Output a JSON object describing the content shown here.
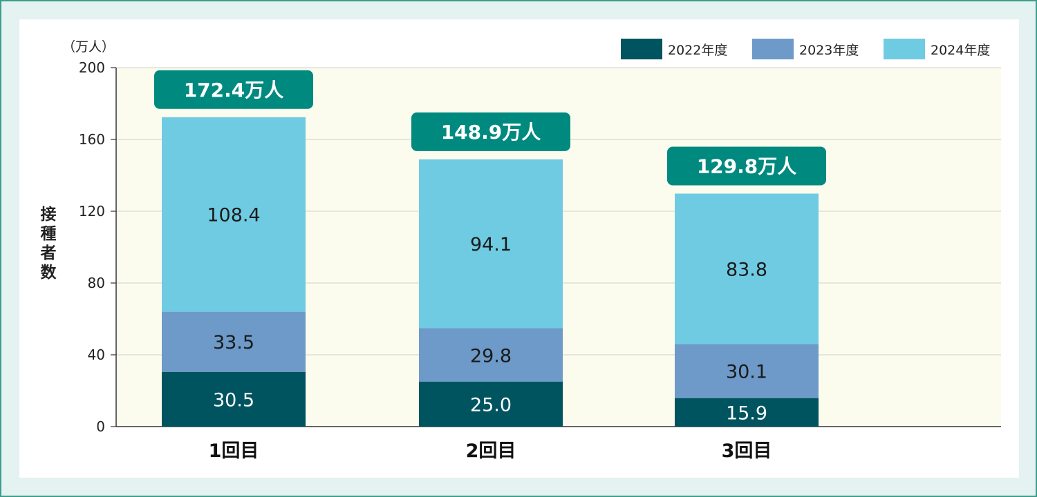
{
  "chart_data": {
    "type": "bar",
    "stacked": true,
    "categories": [
      "1回目",
      "2回目",
      "3回目"
    ],
    "series": [
      {
        "name": "2022年度",
        "values": [
          30.5,
          25.0,
          15.9
        ],
        "color": "#005460",
        "label_color": "#ffffff"
      },
      {
        "name": "2023年度",
        "values": [
          33.5,
          29.8,
          30.1
        ],
        "color": "#6d9ac8",
        "label_color": "#1a1a1a"
      },
      {
        "name": "2024年度",
        "values": [
          108.4,
          94.1,
          83.8
        ],
        "color": "#6fcbe2",
        "label_color": "#1a1a1a"
      }
    ],
    "totals": [
      "172.4万人",
      "148.9万人",
      "129.8万人"
    ],
    "unit_label": "（万人）",
    "ylabel": "接種者数",
    "ylim": [
      0,
      200
    ],
    "yticks": [
      0,
      40,
      80,
      120,
      160,
      200
    ],
    "grid": true,
    "legend_position": "top-right",
    "colors": {
      "plot_background": "#fbfcee",
      "grid": "#cfd2c4",
      "total_badge": "#008a7f",
      "frame": "#3a9e8a",
      "frame_fill": "#e4f2f1"
    }
  }
}
